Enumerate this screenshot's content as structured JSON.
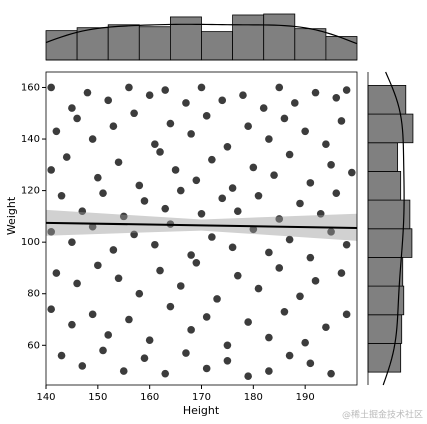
{
  "chart_data": {
    "type": "jointplot",
    "xlabel": "Height",
    "ylabel": "Weight",
    "xlim": [
      140,
      200
    ],
    "ylim": [
      44.6,
      166
    ],
    "xticks": [
      140,
      150,
      160,
      170,
      180,
      190
    ],
    "yticks": [
      60,
      80,
      100,
      120,
      140,
      160
    ],
    "point_color": "#1a1a1a",
    "hist_color": "#808080",
    "points": {
      "x": [
        141,
        145,
        148,
        152,
        156,
        160,
        163,
        167,
        170,
        174,
        178,
        182,
        185,
        188,
        192,
        196,
        198,
        142,
        146,
        149,
        153,
        157,
        161,
        164,
        168,
        171,
        175,
        179,
        183,
        186,
        190,
        194,
        197,
        141,
        144,
        150,
        154,
        158,
        162,
        165,
        169,
        172,
        176,
        180,
        184,
        187,
        191,
        195,
        199,
        143,
        147,
        151,
        155,
        159,
        163,
        166,
        170,
        174,
        177,
        181,
        185,
        189,
        193,
        196,
        141,
        145,
        149,
        153,
        157,
        161,
        164,
        168,
        172,
        176,
        180,
        183,
        187,
        191,
        195,
        198,
        142,
        146,
        150,
        154,
        158,
        162,
        166,
        169,
        173,
        177,
        181,
        185,
        189,
        192,
        197,
        141,
        145,
        149,
        152,
        156,
        160,
        164,
        168,
        171,
        175,
        179,
        183,
        186,
        190,
        194,
        198,
        143,
        147,
        151,
        155,
        159,
        163,
        167,
        171,
        175,
        179,
        183,
        187,
        191,
        195
      ],
      "y": [
        160,
        152,
        158,
        155,
        160,
        157,
        159,
        154,
        160,
        155,
        157,
        152,
        160,
        154,
        158,
        156,
        159,
        143,
        148,
        140,
        145,
        150,
        138,
        146,
        142,
        149,
        137,
        145,
        140,
        148,
        143,
        138,
        147,
        128,
        133,
        125,
        131,
        122,
        135,
        128,
        124,
        132,
        121,
        129,
        126,
        134,
        123,
        130,
        127,
        118,
        112,
        119,
        110,
        116,
        113,
        120,
        111,
        117,
        112,
        118,
        109,
        115,
        111,
        119,
        104,
        100,
        106,
        97,
        103,
        99,
        107,
        95,
        102,
        98,
        105,
        96,
        101,
        94,
        104,
        99,
        88,
        84,
        91,
        86,
        80,
        89,
        83,
        92,
        78,
        87,
        82,
        90,
        79,
        85,
        88,
        74,
        68,
        72,
        64,
        70,
        62,
        75,
        66,
        71,
        60,
        69,
        63,
        73,
        61,
        67,
        72,
        56,
        52,
        58,
        50,
        55,
        49,
        57,
        51,
        54,
        48,
        50,
        56,
        53,
        49
      ]
    },
    "regression": {
      "x": [
        140,
        170,
        200
      ],
      "y": [
        107.5,
        106.5,
        105.5
      ],
      "lower": [
        102.5,
        104.5,
        100.5
      ],
      "upper": [
        112.5,
        108.8,
        111
      ],
      "color": "#000000"
    },
    "top_hist": {
      "bins": [
        140,
        146,
        152,
        158,
        164,
        170,
        176,
        182,
        188,
        194,
        200
      ],
      "counts": [
        30,
        33,
        36,
        34,
        44,
        29,
        46,
        47,
        32,
        24
      ],
      "ylim": [
        0,
        47
      ]
    },
    "right_hist": {
      "bins": [
        49.6,
        60.72,
        71.84,
        82.96,
        94.08,
        105.2,
        116.32,
        127.44,
        138.56,
        149.68,
        160.8
      ],
      "counts": [
        32,
        33,
        35,
        34,
        43,
        41,
        32,
        29,
        44,
        37
      ],
      "xlim": [
        0,
        47
      ]
    },
    "watermark": "@稀土掘金技术社区"
  }
}
